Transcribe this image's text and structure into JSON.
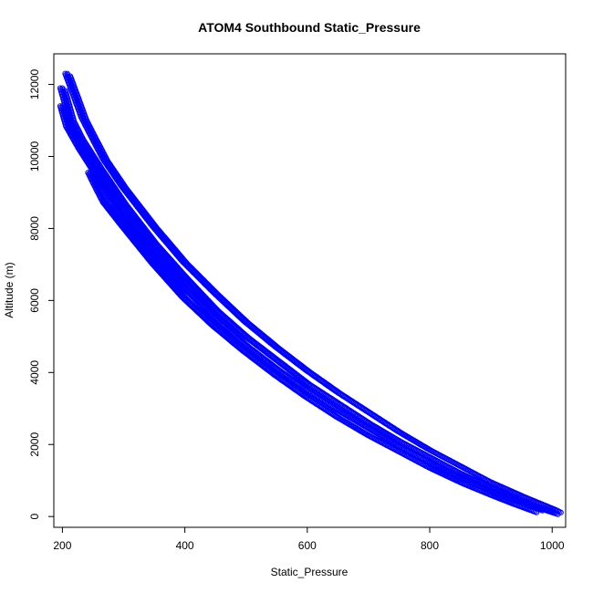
{
  "chart_data": {
    "type": "scatter",
    "title": "ATOM4 Southbound Static_Pressure",
    "xlabel": "Static_Pressure",
    "ylabel": "Altitude (m)",
    "xlim": [
      186,
      1022
    ],
    "ylim": [
      -300,
      12850
    ],
    "x_ticks": [
      200,
      400,
      600,
      800,
      1000
    ],
    "x_tick_labels": [
      "200",
      "400",
      "600",
      "800",
      "1000"
    ],
    "y_ticks": [
      0,
      2000,
      4000,
      6000,
      8000,
      10000,
      12000
    ],
    "y_tick_labels": [
      "0",
      "2000",
      "4000",
      "6000",
      "8000",
      "10000",
      "12000"
    ],
    "point_color": "#0000ff",
    "marker": "open-circle",
    "grid": false,
    "series": [
      {
        "x": [
          1010,
          960,
          900,
          850,
          800,
          750,
          700,
          650,
          600,
          550,
          500,
          450,
          400,
          350,
          300,
          270,
          250,
          235,
          220,
          208
        ],
        "y": [
          150,
          500,
          950,
          1400,
          1850,
          2350,
          2900,
          3450,
          4050,
          4700,
          5400,
          6200,
          7050,
          8050,
          9150,
          9900,
          10550,
          11050,
          11750,
          12300
        ]
      },
      {
        "x": [
          1005,
          950,
          900,
          850,
          800,
          750,
          700,
          650,
          600,
          550,
          500,
          450,
          400,
          350,
          300,
          260,
          230,
          215,
          200
        ],
        "y": [
          100,
          400,
          800,
          1200,
          1650,
          2100,
          2600,
          3150,
          3700,
          4350,
          5000,
          5750,
          6650,
          7600,
          8700,
          9700,
          10500,
          11000,
          11900
        ]
      },
      {
        "x": [
          980,
          940,
          900,
          850,
          800,
          750,
          700,
          650,
          600,
          550,
          500,
          450,
          400,
          350,
          300,
          260,
          230,
          210,
          200
        ],
        "y": [
          200,
          450,
          700,
          1100,
          1500,
          1950,
          2450,
          2950,
          3500,
          4100,
          4750,
          5500,
          6350,
          7300,
          8350,
          9400,
          10200,
          10800,
          11400
        ]
      },
      {
        "x": [
          970,
          930,
          900,
          850,
          800,
          750,
          700,
          650,
          600,
          550,
          500,
          450,
          400,
          350,
          300,
          270,
          255,
          245
        ],
        "y": [
          150,
          400,
          600,
          950,
          1350,
          1800,
          2250,
          2750,
          3300,
          3900,
          4550,
          5250,
          6050,
          7000,
          8050,
          8700,
          9200,
          9550
        ]
      }
    ]
  }
}
